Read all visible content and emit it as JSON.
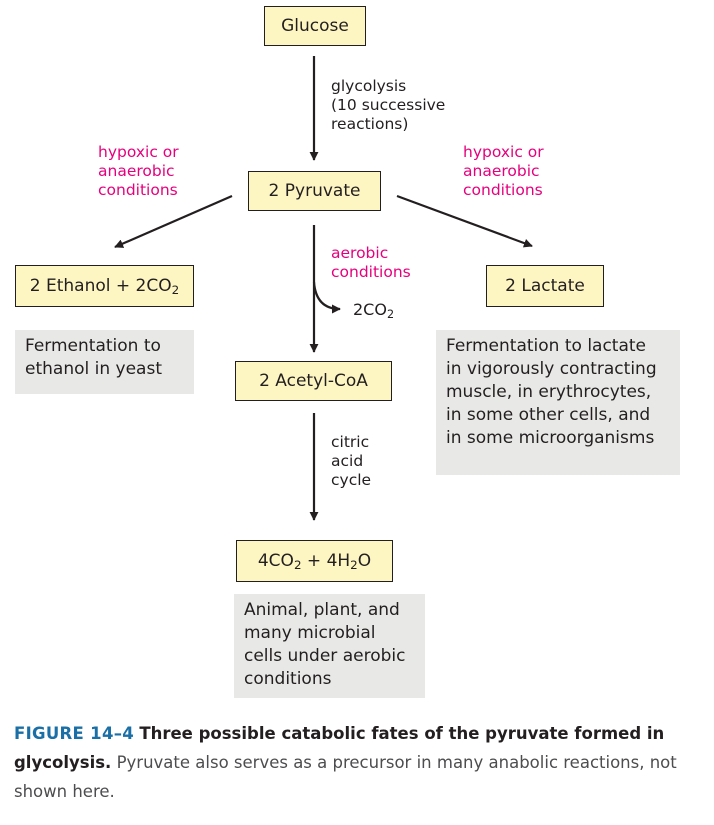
{
  "nodes": {
    "glucose": "Glucose",
    "pyruvate": "2 Pyruvate",
    "ethanol": {
      "pre": "2 Ethanol + 2CO",
      "sub": "2"
    },
    "lactate": "2 Lactate",
    "acetyl_coa": "2 Acetyl-CoA",
    "final": {
      "a": "4CO",
      "a_sub": "2",
      "b": " + 4H",
      "b_sub": "2",
      "c": "O"
    }
  },
  "edge_labels": {
    "glycolysis": [
      "glycolysis",
      "(10 successive",
      "reactions)"
    ],
    "hypoxic_left": [
      "hypoxic or",
      "anaerobic",
      "conditions"
    ],
    "hypoxic_right": [
      "hypoxic or",
      "anaerobic",
      "conditions"
    ],
    "aerobic": [
      "aerobic",
      "conditions"
    ],
    "co2_release": {
      "pre": "2CO",
      "sub": "2"
    },
    "citric": [
      "citric",
      "acid",
      "cycle"
    ]
  },
  "notes": {
    "ethanol": [
      "Fermentation to",
      "ethanol in yeast"
    ],
    "lactate": [
      "Fermentation to lactate",
      "in vigorously contracting",
      "muscle, in erythrocytes,",
      "in some other cells, and",
      "in some microorganisms"
    ],
    "aerobic": [
      "Animal, plant, and",
      "many microbial",
      "cells under aerobic",
      "conditions"
    ]
  },
  "caption": {
    "figure_label": "FIGURE 14–4",
    "title": "Three possible catabolic fates of the pyruvate formed in glycolysis.",
    "text": "Pyruvate also serves as a precursor in many anabolic reactions, not shown here."
  },
  "colors": {
    "box_fill": "#fdf6c3",
    "note_fill": "#e8e8e6",
    "condition_label": "#e6007e",
    "figure_label": "#1a6fa6"
  }
}
